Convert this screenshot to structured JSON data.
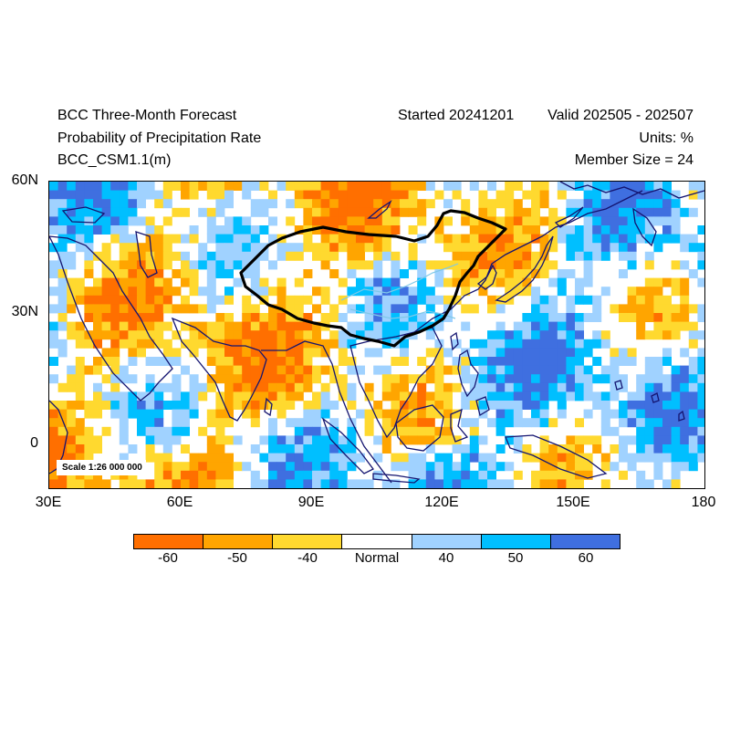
{
  "header": {
    "title": "BCC Three-Month Forecast",
    "subtitle": "Probability of Precipitation Rate",
    "model": "BCC_CSM1.1(m)",
    "started": "Started 20241201",
    "valid": "Valid 202505 - 202507",
    "units": "Units: %",
    "member_size": "Member Size = 24"
  },
  "map": {
    "lon_range": [
      30,
      180
    ],
    "lat_range": [
      -10,
      60
    ],
    "x_ticks": [
      "30E",
      "60E",
      "90E",
      "120E",
      "150E",
      "180"
    ],
    "y_ticks": [
      "60N",
      "30N",
      "0"
    ],
    "scale": "Scale 1:26 000 000"
  },
  "legend": {
    "categories": [
      {
        "label": "-60",
        "color": "#ff6f00"
      },
      {
        "label": "-50",
        "color": "#ffa500"
      },
      {
        "label": "-40",
        "color": "#ffd92f"
      },
      {
        "label": "Normal",
        "color": "#ffffff"
      },
      {
        "label": "40",
        "color": "#a0d2ff"
      },
      {
        "label": "50",
        "color": "#00bfff"
      },
      {
        "label": "60",
        "color": "#3f6fe0"
      }
    ]
  }
}
